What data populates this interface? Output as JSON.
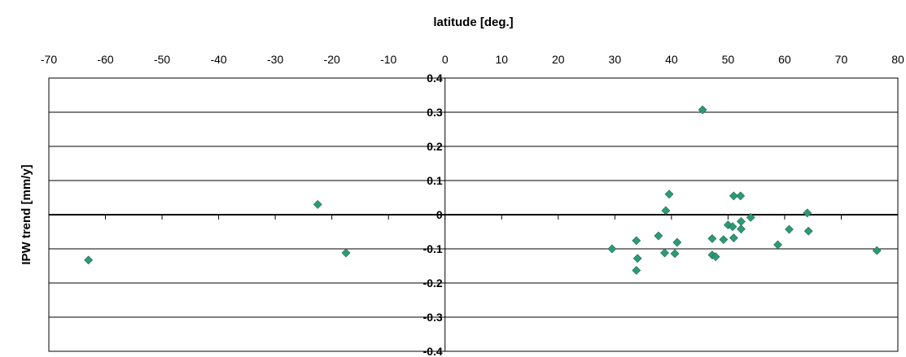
{
  "chart_data": {
    "type": "scatter",
    "xlabel": "latitude [deg.]",
    "ylabel": "IPW trend [mm/y]",
    "xlim": [
      -70,
      80
    ],
    "ylim": [
      -0.4,
      0.4
    ],
    "x_ticks": [
      -70,
      -60,
      -50,
      -40,
      -30,
      -20,
      -10,
      0,
      10,
      20,
      30,
      40,
      50,
      60,
      70,
      80
    ],
    "y_ticks": [
      0.4,
      0.3,
      0.2,
      0.1,
      0,
      -0.1,
      -0.2,
      -0.3,
      -0.4
    ],
    "x_axis_position": "top",
    "grid": "horizontal",
    "marker": "diamond",
    "marker_color": "#2e9a74",
    "points": [
      {
        "x": -63,
        "y": -0.133
      },
      {
        "x": -22.5,
        "y": 0.03
      },
      {
        "x": -17.5,
        "y": -0.112
      },
      {
        "x": 29.5,
        "y": -0.1
      },
      {
        "x": 33.8,
        "y": -0.076
      },
      {
        "x": 34.0,
        "y": -0.128
      },
      {
        "x": 33.8,
        "y": -0.163
      },
      {
        "x": 37.7,
        "y": -0.062
      },
      {
        "x": 38.8,
        "y": -0.112
      },
      {
        "x": 39.0,
        "y": 0.012
      },
      {
        "x": 39.6,
        "y": 0.06
      },
      {
        "x": 40.6,
        "y": -0.114
      },
      {
        "x": 41.0,
        "y": -0.081
      },
      {
        "x": 45.5,
        "y": 0.307
      },
      {
        "x": 47.2,
        "y": -0.07
      },
      {
        "x": 47.2,
        "y": -0.118
      },
      {
        "x": 47.8,
        "y": -0.123
      },
      {
        "x": 49.2,
        "y": -0.073
      },
      {
        "x": 50.0,
        "y": -0.03
      },
      {
        "x": 50.8,
        "y": -0.035
      },
      {
        "x": 51.0,
        "y": -0.068
      },
      {
        "x": 51.0,
        "y": 0.055
      },
      {
        "x": 52.2,
        "y": 0.055
      },
      {
        "x": 52.3,
        "y": -0.02
      },
      {
        "x": 52.3,
        "y": -0.042
      },
      {
        "x": 54.0,
        "y": -0.008
      },
      {
        "x": 58.8,
        "y": -0.088
      },
      {
        "x": 60.8,
        "y": -0.043
      },
      {
        "x": 64.0,
        "y": 0.005
      },
      {
        "x": 64.2,
        "y": -0.048
      },
      {
        "x": 76.3,
        "y": -0.105
      }
    ]
  }
}
